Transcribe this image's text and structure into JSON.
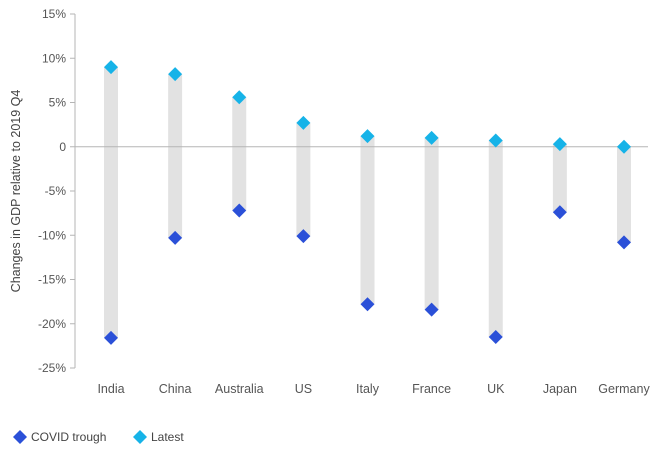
{
  "chart_data": {
    "type": "dot-range",
    "ylabel": "Changes in GDP relative to 2019 Q4",
    "ylim": [
      -25,
      15
    ],
    "yticks": [
      15,
      10,
      5,
      0,
      -5,
      -10,
      -15,
      -20,
      -25
    ],
    "ytick_labels": [
      "15%",
      "10%",
      "5%",
      "0",
      "-5%",
      "-10%",
      "-15%",
      "-20%",
      "-25%"
    ],
    "categories": [
      "India",
      "China",
      "Australia",
      "US",
      "Italy",
      "France",
      "UK",
      "Japan",
      "Germany"
    ],
    "series": [
      {
        "name": "COVID trough",
        "color": "#2b50d8",
        "marker": "diamond",
        "values": [
          -21.6,
          -10.3,
          -7.2,
          -10.1,
          -17.8,
          -18.4,
          -21.5,
          -7.4,
          -10.8
        ]
      },
      {
        "name": "Latest",
        "color": "#16b3e8",
        "marker": "diamond",
        "values": [
          9.0,
          8.2,
          5.6,
          2.7,
          1.2,
          1.0,
          0.7,
          0.3,
          0.0
        ]
      }
    ],
    "range_bar_color": "#e2e2e2",
    "grid": false,
    "legend_position": "bottom-left"
  }
}
